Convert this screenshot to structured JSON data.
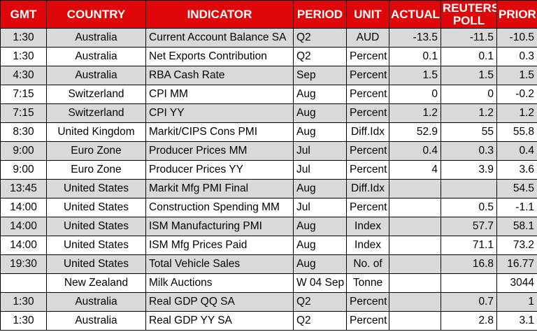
{
  "colors": {
    "header_bg": "#e0070a",
    "header_text": "#ffffff",
    "row_bg": "#ffffff",
    "row_alt_bg": "#d9d9d9",
    "border": "#000000",
    "text": "#000000"
  },
  "chart_data": {
    "type": "table",
    "columns": [
      {
        "key": "gmt",
        "label": "GMT"
      },
      {
        "key": "country",
        "label": "COUNTRY"
      },
      {
        "key": "indicator",
        "label": "INDICATOR"
      },
      {
        "key": "period",
        "label": "PERIOD"
      },
      {
        "key": "unit",
        "label": "UNIT"
      },
      {
        "key": "actual",
        "label": "ACTUAL"
      },
      {
        "key": "poll",
        "label": "REUTERS POLL"
      },
      {
        "key": "prior",
        "label": "PRIOR"
      }
    ],
    "rows": [
      {
        "gmt": "1:30",
        "country": "Australia",
        "indicator": "Current Account Balance SA",
        "period": "Q2",
        "unit": "AUD",
        "actual": "-13.5",
        "poll": "-11.5",
        "prior": "-10.5"
      },
      {
        "gmt": "1:30",
        "country": "Australia",
        "indicator": "Net Exports Contribution",
        "period": "Q2",
        "unit": "Percent",
        "actual": "0.1",
        "poll": "0.1",
        "prior": "0.3"
      },
      {
        "gmt": "4:30",
        "country": "Australia",
        "indicator": "RBA Cash Rate",
        "period": "Sep",
        "unit": "Percent",
        "actual": "1.5",
        "poll": "1.5",
        "prior": "1.5"
      },
      {
        "gmt": "7:15",
        "country": "Switzerland",
        "indicator": "CPI MM",
        "period": "Aug",
        "unit": "Percent",
        "actual": "0",
        "poll": "0",
        "prior": "-0.2"
      },
      {
        "gmt": "7:15",
        "country": "Switzerland",
        "indicator": "CPI YY",
        "period": "Aug",
        "unit": "Percent",
        "actual": "1.2",
        "poll": "1.2",
        "prior": "1.2"
      },
      {
        "gmt": "8:30",
        "country": "United Kingdom",
        "indicator": "Markit/CIPS Cons PMI",
        "period": "Aug",
        "unit": "Diff.Idx",
        "actual": "52.9",
        "poll": "55",
        "prior": "55.8"
      },
      {
        "gmt": "9:00",
        "country": "Euro Zone",
        "indicator": "Producer Prices MM",
        "period": "Jul",
        "unit": "Percent",
        "actual": "0.4",
        "poll": "0.3",
        "prior": "0.4"
      },
      {
        "gmt": "9:00",
        "country": "Euro Zone",
        "indicator": "Producer Prices YY",
        "period": "Jul",
        "unit": "Percent",
        "actual": "4",
        "poll": "3.9",
        "prior": "3.6"
      },
      {
        "gmt": "13:45",
        "country": "United States",
        "indicator": "Markit Mfg PMI Final",
        "period": "Aug",
        "unit": "Diff.Idx",
        "actual": "",
        "poll": "",
        "prior": "54.5"
      },
      {
        "gmt": "14:00",
        "country": "United States",
        "indicator": "Construction Spending MM",
        "period": "Jul",
        "unit": "Percent",
        "actual": "",
        "poll": "0.5",
        "prior": "-1.1"
      },
      {
        "gmt": "14:00",
        "country": "United States",
        "indicator": "ISM Manufacturing PMI",
        "period": "Aug",
        "unit": "Index",
        "actual": "",
        "poll": "57.7",
        "prior": "58.1"
      },
      {
        "gmt": "14:00",
        "country": "United States",
        "indicator": "ISM Mfg Prices Paid",
        "period": "Aug",
        "unit": "Index",
        "actual": "",
        "poll": "71.1",
        "prior": "73.2"
      },
      {
        "gmt": "19:30",
        "country": "United States",
        "indicator": "Total Vehicle Sales",
        "period": "Aug",
        "unit": "No. of",
        "actual": "",
        "poll": "16.8",
        "prior": "16.77"
      },
      {
        "gmt": "",
        "country": "New Zealand",
        "indicator": "Milk Auctions",
        "period": "W 04 Sep",
        "unit": "Tonne",
        "actual": "",
        "poll": "",
        "prior": "3044"
      },
      {
        "gmt": "1:30",
        "country": "Australia",
        "indicator": "Real GDP QQ SA",
        "period": "Q2",
        "unit": "Percent",
        "actual": "",
        "poll": "0.7",
        "prior": "1"
      },
      {
        "gmt": "1:30",
        "country": "Australia",
        "indicator": "Real GDP YY SA",
        "period": "Q2",
        "unit": "Percent",
        "actual": "",
        "poll": "2.8",
        "prior": "3.1"
      }
    ]
  }
}
